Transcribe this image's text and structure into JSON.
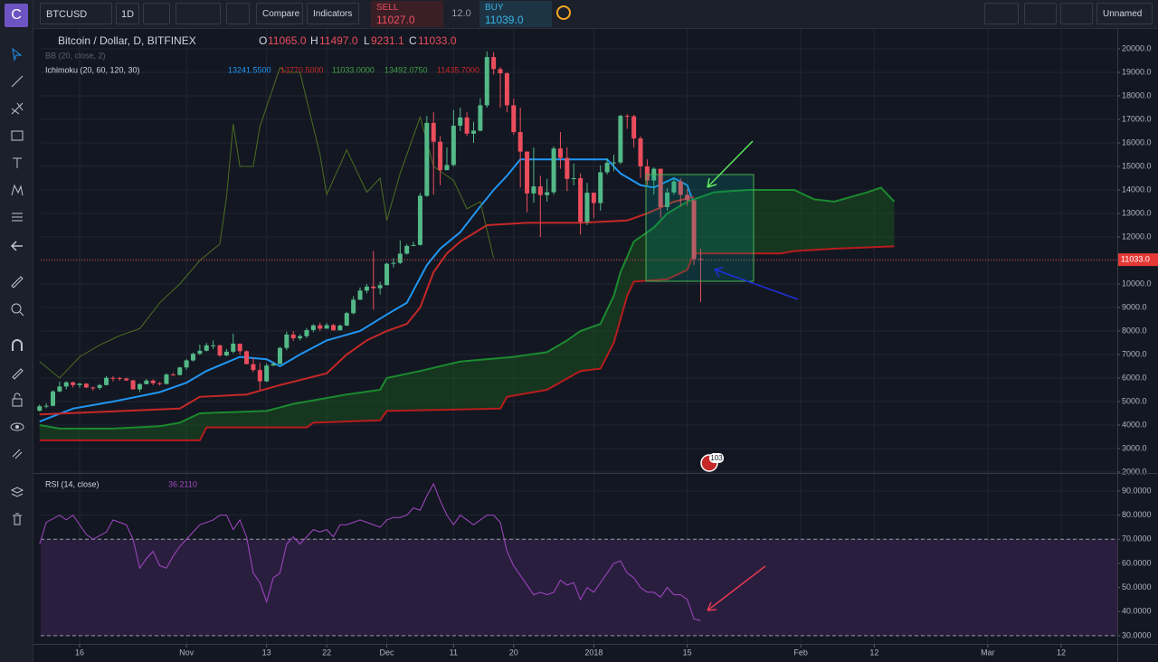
{
  "logo": "C",
  "event_badge": "103",
  "toolbar": {
    "symbol": "BTCUSD",
    "interval": "1D",
    "compare": "Compare",
    "indicators": "Indicators",
    "sell_label": "SELL",
    "sell_price": "11027.0",
    "spread": "12.0",
    "buy_label": "BUY",
    "buy_price": "11039.0",
    "layout_name": "Unnamed"
  },
  "chart_data": [
    {
      "type": "candlestick",
      "title": "Bitcoin / Dollar, D, BITFINEX",
      "ohlc_legend": [
        "O",
        "11065.0",
        "H",
        "11497.0",
        "L",
        "9231.1",
        "C",
        "11033.0"
      ],
      "indicators": [
        {
          "name": "BB (20, close, 2)"
        },
        {
          "name": "Ichimoku (20, 60, 120, 30)",
          "values": [
            {
              "text": "13241.5500",
              "color": "#2196f3"
            },
            {
              "text": "13770.5000",
              "color": "#c62828"
            },
            {
              "text": "11033.0000",
              "color": "#43a047"
            },
            {
              "text": "13492.0750",
              "color": "#43a047"
            },
            {
              "text": "11435.7000",
              "color": "#c62828"
            }
          ]
        }
      ],
      "up_color": "#53b987",
      "down_color": "#eb4d5c",
      "x": [
        9,
        10,
        11,
        12,
        13,
        14,
        15,
        16,
        17,
        18,
        19,
        20,
        21,
        22,
        23,
        24,
        25,
        26,
        27,
        28,
        29,
        30,
        31,
        32,
        33,
        34,
        35,
        36,
        37,
        38,
        39,
        40,
        41,
        42,
        43,
        44,
        45,
        46,
        47,
        48,
        49,
        50,
        51,
        52,
        53,
        54,
        55,
        56,
        57,
        58,
        59,
        60,
        61,
        62,
        63,
        64,
        65,
        66,
        67,
        68,
        69,
        70,
        71,
        72,
        73,
        74,
        75,
        76,
        77,
        78,
        79,
        80,
        81,
        82,
        83,
        84,
        85,
        86,
        87,
        88,
        89,
        90,
        91,
        92,
        93,
        94,
        95,
        96,
        97,
        98,
        99,
        100,
        101,
        102,
        103,
        104,
        105,
        106,
        107,
        108
      ],
      "open": [
        4610,
        4800,
        4820,
        5430,
        5640,
        5820,
        5700,
        5760,
        5600,
        5580,
        5700,
        6010,
        6000,
        5980,
        5900,
        5520,
        5740,
        5890,
        5780,
        5750,
        6150,
        6130,
        6450,
        6750,
        7030,
        7160,
        7390,
        7390,
        6960,
        7120,
        7460,
        7140,
        6590,
        6340,
        5860,
        6530,
        6600,
        7280,
        7850,
        7690,
        7780,
        8040,
        8240,
        8100,
        8250,
        8030,
        8230,
        8760,
        9330,
        9720,
        9890,
        9820,
        9950,
        10860,
        10900,
        11290,
        11620,
        11660,
        13750,
        16850,
        16050,
        14840,
        15060,
        16730,
        17080,
        16390,
        16520,
        17600,
        19650,
        19140,
        18960,
        17600,
        16460,
        15630,
        13850,
        14150,
        13780,
        13900,
        15760,
        15360,
        14470,
        14500,
        12640,
        13880,
        13440,
        14750,
        15150,
        15170,
        17150,
        17130,
        16190,
        15000,
        14400,
        14900,
        13270,
        13890,
        14360,
        13790,
        13560,
        11065
      ],
      "high": [
        4880,
        4920,
        5480,
        5850,
        5860,
        5850,
        5790,
        5780,
        5640,
        5750,
        6080,
        6080,
        6050,
        6020,
        5920,
        5780,
        5960,
        5950,
        5830,
        6200,
        6220,
        6480,
        6800,
        7080,
        7420,
        7490,
        7600,
        7420,
        7240,
        7890,
        7470,
        7180,
        6850,
        6640,
        6620,
        6700,
        7330,
        7970,
        8000,
        7860,
        8130,
        8290,
        8360,
        8340,
        8300,
        8280,
        8820,
        9480,
        9850,
        10000,
        11400,
        10100,
        10900,
        11100,
        11850,
        11700,
        11800,
        13870,
        17150,
        17300,
        16300,
        15800,
        17400,
        17500,
        17300,
        16900,
        17900,
        19890,
        19860,
        19220,
        19000,
        17880,
        17500,
        15640,
        15800,
        14600,
        14480,
        15850,
        16460,
        15810,
        15120,
        14700,
        14300,
        13900,
        15040,
        15350,
        15500,
        17200,
        17220,
        17200,
        16280,
        15300,
        14960,
        14900,
        14070,
        14470,
        14500,
        14050,
        13600,
        11497
      ],
      "low": [
        4580,
        4720,
        4790,
        5390,
        5520,
        5600,
        5580,
        5570,
        5460,
        5500,
        5690,
        5860,
        5880,
        5870,
        5500,
        5400,
        5730,
        5700,
        5680,
        5720,
        6100,
        6100,
        6350,
        6700,
        6980,
        7130,
        7240,
        6900,
        6920,
        7050,
        7000,
        6580,
        6250,
        5510,
        5830,
        6510,
        6580,
        7180,
        7570,
        7600,
        7700,
        7950,
        8000,
        8100,
        8020,
        8030,
        8210,
        8700,
        9320,
        9600,
        8900,
        9550,
        9950,
        10700,
        10850,
        11250,
        11600,
        11630,
        13700,
        13800,
        14200,
        14840,
        15000,
        16500,
        16290,
        16000,
        16490,
        17500,
        18900,
        17500,
        17300,
        16350,
        14100,
        13050,
        13450,
        12000,
        13500,
        13800,
        14900,
        13950,
        14190,
        12100,
        12500,
        12800,
        13120,
        14650,
        14800,
        15090,
        16600,
        15800,
        14500,
        14200,
        13800,
        12800,
        13120,
        13790,
        13300,
        13330,
        10800,
        9231.1
      ],
      "close": [
        4800,
        4820,
        5430,
        5640,
        5820,
        5700,
        5760,
        5600,
        5580,
        5700,
        6010,
        6000,
        5980,
        5900,
        5520,
        5740,
        5890,
        5780,
        5750,
        6150,
        6130,
        6450,
        6750,
        7030,
        7160,
        7390,
        7390,
        6960,
        7120,
        7460,
        7140,
        6590,
        6340,
        5860,
        6530,
        6600,
        7280,
        7850,
        7690,
        7780,
        8040,
        8240,
        8100,
        8250,
        8030,
        8230,
        8760,
        9330,
        9720,
        9890,
        9820,
        9950,
        10860,
        10900,
        11290,
        11620,
        11660,
        13750,
        16850,
        16050,
        14840,
        15060,
        16730,
        17080,
        16390,
        16520,
        17600,
        19650,
        19140,
        18960,
        17600,
        16460,
        15630,
        13850,
        14150,
        13780,
        13900,
        15760,
        15360,
        14470,
        14500,
        12640,
        13880,
        13440,
        14750,
        15150,
        15170,
        17150,
        17130,
        16190,
        15000,
        14400,
        14900,
        13270,
        13890,
        14360,
        13790,
        13560,
        11065,
        11033
      ],
      "lines": [
        {
          "color": "#2196f3",
          "x": [
            9,
            14,
            20,
            27,
            31,
            34,
            39,
            43,
            45,
            48,
            52,
            57,
            61,
            64,
            67,
            69,
            72,
            75,
            77,
            79,
            81,
            94,
            96,
            99,
            101,
            104,
            106,
            107
          ],
          "values": [
            4150,
            4700,
            5000,
            5400,
            5800,
            6300,
            6900,
            6800,
            6500,
            7000,
            7600,
            8000,
            8700,
            9200,
            10800,
            11500,
            12200,
            13300,
            14000,
            14600,
            15300,
            15300,
            14700,
            14200,
            14100,
            14500,
            14200,
            13400
          ]
        },
        {
          "color": "#c62828",
          "x": [
            9,
            30,
            33,
            40,
            45,
            52,
            55,
            58,
            61,
            64,
            66,
            68,
            70,
            72,
            76,
            82,
            90,
            97,
            100,
            104,
            107
          ],
          "values": [
            4450,
            4700,
            5200,
            5300,
            5700,
            6200,
            7000,
            7600,
            8000,
            8300,
            9000,
            10500,
            11300,
            11800,
            12500,
            12600,
            12600,
            12700,
            13000,
            13500,
            13700
          ]
        },
        {
          "color": "#1b8a2f",
          "x": [
            9,
            12,
            20,
            27,
            30,
            33,
            43,
            47,
            55,
            60,
            61,
            66,
            72,
            80,
            85,
            88,
            90,
            93,
            95,
            96,
            98,
            101,
            103,
            106,
            108,
            110,
            115,
            122,
            125,
            128,
            133,
            135,
            137
          ],
          "values": [
            4000,
            3850,
            3850,
            3950,
            4100,
            4500,
            4600,
            4900,
            5300,
            5500,
            6000,
            6300,
            6700,
            6900,
            7100,
            7600,
            8000,
            8300,
            9500,
            10500,
            11800,
            12400,
            13000,
            13500,
            13700,
            13900,
            14000,
            14000,
            13600,
            13500,
            13900,
            14100,
            13500
          ]
        },
        {
          "color": "#b71c1c",
          "x": [
            9,
            33,
            34,
            49,
            50,
            60,
            61,
            78,
            79,
            85,
            90,
            93,
            95,
            97,
            98,
            103,
            106,
            107,
            120,
            122,
            128,
            137
          ],
          "values": [
            3350,
            3350,
            3900,
            3900,
            4100,
            4200,
            4600,
            4700,
            5200,
            5500,
            6300,
            6400,
            7500,
            9500,
            10100,
            10200,
            10600,
            11300,
            11300,
            11400,
            11500,
            11600
          ]
        },
        {
          "color": "#4b6e20",
          "x": [
            9,
            12,
            15,
            18,
            21,
            24,
            27,
            30,
            33,
            36,
            37,
            38,
            39,
            41,
            42,
            45,
            46,
            48,
            51,
            52,
            55,
            58,
            60,
            61,
            63,
            66,
            68,
            71,
            73,
            75,
            77
          ],
          "values": [
            6700,
            6000,
            6900,
            7400,
            7800,
            8100,
            9200,
            10000,
            11000,
            11700,
            13700,
            16800,
            15000,
            15000,
            16700,
            19200,
            19000,
            19000,
            15500,
            13800,
            15700,
            13900,
            14500,
            12700,
            14700,
            17100,
            15000,
            14400,
            13200,
            13500,
            11100
          ]
        }
      ],
      "cloud_color": "#1b5e20",
      "last_price": {
        "value": 11033,
        "label": "11033.0",
        "color": "#e53935"
      },
      "xlim": [
        9.17,
        170.4
      ],
      "ylim": [
        2000,
        20846
      ],
      "yticks": [
        {
          "value": 2000,
          "label": "2000.0"
        },
        {
          "value": 3000,
          "label": "3000.0"
        },
        {
          "value": 4000,
          "label": "4000.0"
        },
        {
          "value": 5000,
          "label": "5000.0"
        },
        {
          "value": 6000,
          "label": "6000.0"
        },
        {
          "value": 7000,
          "label": "7000.0"
        },
        {
          "value": 8000,
          "label": "8000.0"
        },
        {
          "value": 9000,
          "label": "9000.0"
        },
        {
          "value": 10000,
          "label": "10000.0"
        },
        {
          "value": 11000,
          "label": "11000.0"
        },
        {
          "value": 12000,
          "label": "12000.0"
        },
        {
          "value": 13000,
          "label": "13000.0"
        },
        {
          "value": 14000,
          "label": "14000.0"
        },
        {
          "value": 15000,
          "label": "15000.0"
        },
        {
          "value": 16000,
          "label": "16000.0"
        },
        {
          "value": 17000,
          "label": "17000.0"
        },
        {
          "value": 18000,
          "label": "18000.0"
        },
        {
          "value": 19000,
          "label": "19000.0"
        },
        {
          "value": 20000,
          "label": "20000.0"
        }
      ],
      "grid": true
    },
    {
      "type": "line",
      "title": "RSI (14, close)",
      "legend_value": "36.2110",
      "color": "#a348c4",
      "x": [
        9,
        10,
        12,
        13,
        14,
        15,
        16,
        17,
        19,
        20,
        22,
        23,
        24,
        25,
        26,
        27,
        28,
        29,
        30,
        31,
        32,
        33,
        35,
        36,
        37,
        38,
        39,
        40,
        41,
        42,
        43,
        44,
        45,
        46,
        47,
        48,
        49,
        50,
        51,
        52,
        53,
        54,
        55,
        56,
        57,
        58,
        59,
        60,
        61,
        62,
        63,
        64,
        65,
        66,
        67,
        68,
        69,
        70,
        71,
        72,
        73,
        74,
        75,
        76,
        77,
        78,
        79,
        80,
        81,
        82,
        83,
        84,
        85,
        86,
        87,
        88,
        89,
        90,
        91,
        92,
        93,
        94,
        95,
        96,
        97,
        98,
        99,
        100,
        101,
        102,
        103,
        104,
        105,
        106,
        107,
        108
      ],
      "values": [
        68,
        77,
        80,
        78,
        80,
        76,
        72,
        70,
        73,
        78,
        76,
        70,
        58,
        62,
        65,
        59,
        58,
        63,
        67,
        70,
        73,
        76,
        78,
        80,
        80,
        74,
        78,
        71,
        56,
        52,
        44,
        54,
        56,
        68,
        71,
        68,
        71,
        74,
        73,
        74,
        71,
        76,
        76,
        77,
        78,
        77,
        76,
        75,
        78,
        79,
        79,
        80,
        83,
        82,
        88,
        93,
        86,
        80,
        76,
        80,
        78,
        76,
        78,
        80,
        80,
        77,
        65,
        59,
        55,
        51,
        47,
        48,
        47,
        48,
        53,
        51,
        52,
        45,
        50,
        48,
        52,
        56,
        60,
        61,
        56,
        54,
        50,
        48,
        48,
        46,
        50,
        47,
        47,
        45,
        37,
        36.211
      ],
      "band": [
        30,
        70
      ],
      "band_color": "#2a1e3f",
      "xlim": [
        9.17,
        170.4
      ],
      "xticks": [
        {
          "value": 15,
          "label": "16"
        },
        {
          "value": 31,
          "label": "Nov"
        },
        {
          "value": 43,
          "label": "13"
        },
        {
          "value": 52,
          "label": "22"
        },
        {
          "value": 61,
          "label": "Dec"
        },
        {
          "value": 71,
          "label": "11"
        },
        {
          "value": 80,
          "label": "20"
        },
        {
          "value": 92,
          "label": "2018"
        },
        {
          "value": 106,
          "label": "15"
        },
        {
          "value": 123,
          "label": "Feb"
        },
        {
          "value": 134,
          "label": "12"
        },
        {
          "value": 151,
          "label": "Mar"
        },
        {
          "value": 162,
          "label": "12"
        }
      ],
      "ylim": [
        26.6,
        97.1
      ],
      "yticks": [
        {
          "value": 30,
          "label": "30.0000"
        },
        {
          "value": 40,
          "label": "40.0000"
        },
        {
          "value": 50,
          "label": "50.0000"
        },
        {
          "value": 60,
          "label": "60.0000"
        },
        {
          "value": 70,
          "label": "70.0000"
        },
        {
          "value": 80,
          "label": "80.0000"
        },
        {
          "value": 90,
          "label": "90.0000"
        }
      ],
      "grid": true
    }
  ]
}
